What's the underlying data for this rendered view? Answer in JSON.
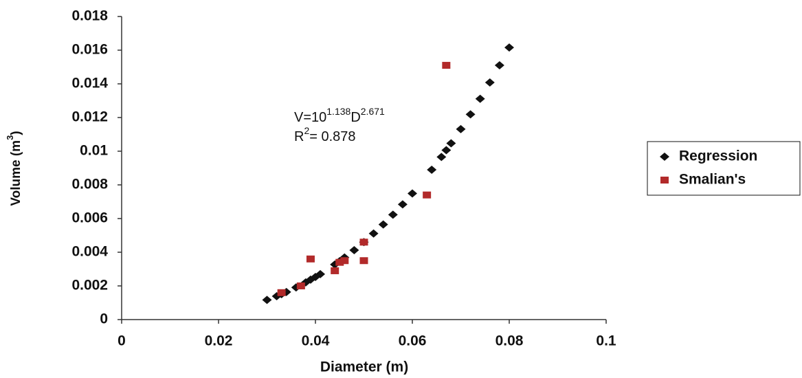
{
  "chart_data": {
    "type": "scatter",
    "x_label": "Diameter (m)",
    "y_label": {
      "text": "Volume (m",
      "sup": "3",
      "end": ")"
    },
    "annotation": {
      "line1": {
        "base": "V=10",
        "exp": "1.138",
        "base2": "D",
        "exp2": "2.671"
      },
      "line2": {
        "base": "R",
        "exp": "2",
        "rest": "= 0.878"
      }
    },
    "xlim": [
      0,
      0.1
    ],
    "xticks": [
      0,
      0.02,
      0.04,
      0.06,
      0.08,
      0.1
    ],
    "ylim": [
      0,
      0.018
    ],
    "yticks": [
      0,
      0.002,
      0.004,
      0.006,
      0.008,
      0.01,
      0.012,
      0.014,
      0.016,
      0.018
    ],
    "grid": false,
    "legend": "right",
    "series": [
      {
        "name": "Regression",
        "color": "#111111",
        "marker": "diamond",
        "x": [
          0.03,
          0.032,
          0.033,
          0.034,
          0.036,
          0.038,
          0.039,
          0.04,
          0.041,
          0.044,
          0.045,
          0.046,
          0.048,
          0.05,
          0.052,
          0.054,
          0.056,
          0.058,
          0.06,
          0.064,
          0.066,
          0.067,
          0.068,
          0.07,
          0.072,
          0.074,
          0.076,
          0.078,
          0.08
        ],
        "values": [
          0.00117,
          0.00139,
          0.00151,
          0.00164,
          0.00191,
          0.00221,
          0.00237,
          0.00253,
          0.0027,
          0.00327,
          0.00347,
          0.00369,
          0.00412,
          0.0046,
          0.00511,
          0.00565,
          0.00623,
          0.00684,
          0.00749,
          0.0089,
          0.00966,
          0.01006,
          0.01047,
          0.01131,
          0.01219,
          0.01311,
          0.01408,
          0.0151,
          0.01616
        ]
      },
      {
        "name": "Smalian's",
        "color": "#b22a2a",
        "marker": "square",
        "x": [
          0.033,
          0.037,
          0.039,
          0.044,
          0.045,
          0.046,
          0.05,
          0.05,
          0.063,
          0.067
        ],
        "values": [
          0.0016,
          0.002,
          0.0036,
          0.0029,
          0.0034,
          0.0035,
          0.0046,
          0.0035,
          0.0074,
          0.0151
        ]
      }
    ]
  }
}
